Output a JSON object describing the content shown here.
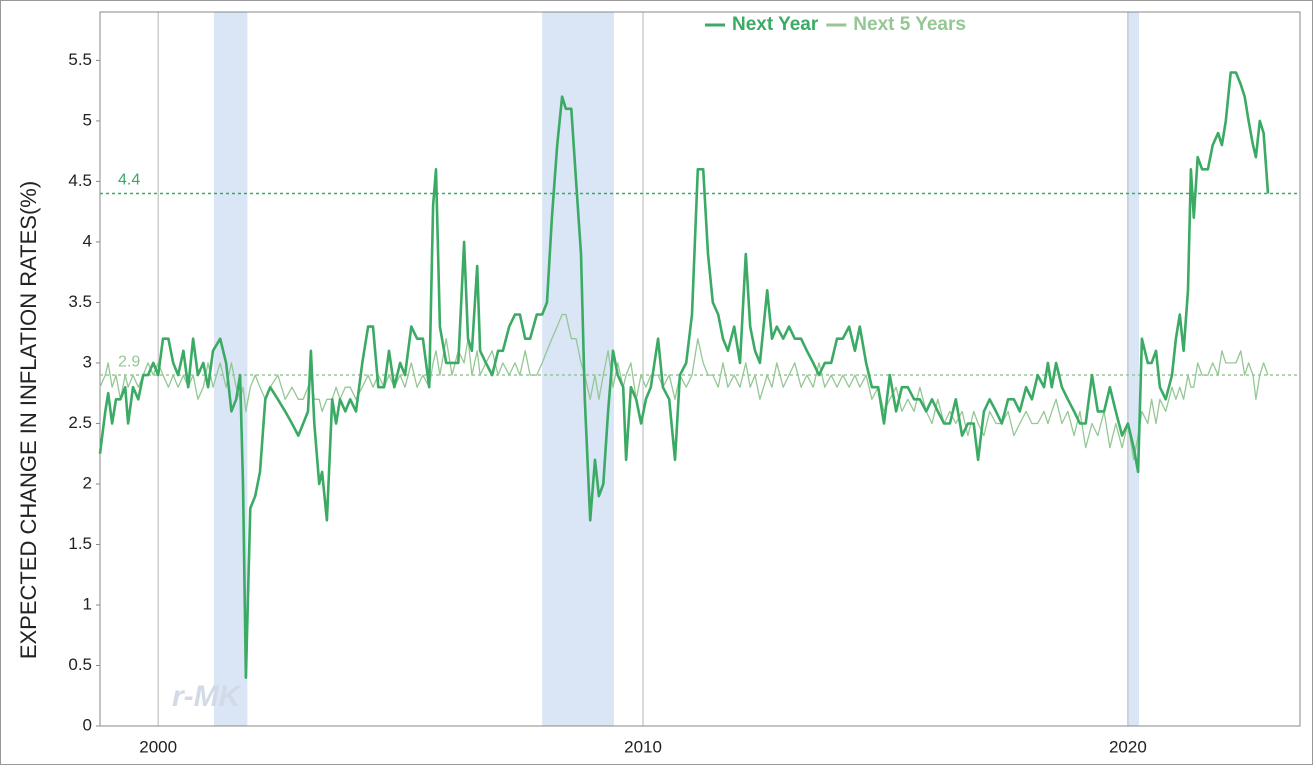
{
  "chart_data": {
    "type": "line",
    "y_label": "EXPECTED CHANGE IN INFLATION RATES(%)",
    "legend": "top",
    "watermark": "r-MK",
    "xlim": [
      1998.8,
      2023.55
    ],
    "xticks": [
      2000,
      2010,
      2020
    ],
    "xgrid": true,
    "ylim": [
      0,
      5.9
    ],
    "yticks": [
      0,
      0.5,
      1,
      1.5,
      2,
      2.5,
      3,
      3.5,
      4,
      4.5,
      5,
      5.5
    ],
    "shaded_ranges": [
      [
        2001.15,
        2001.84
      ],
      [
        2007.92,
        2009.4
      ],
      [
        2020.0,
        2020.23
      ]
    ],
    "shade_color": "#dae6f6",
    "reference_lines": [
      {
        "value": 4.4,
        "color": "#3aaa64"
      },
      {
        "value": 2.9,
        "color": "#95c795"
      }
    ],
    "x": [
      1998.8,
      1998.91,
      1998.97,
      1999.05,
      1999.13,
      1999.22,
      1999.32,
      1999.38,
      1999.48,
      1999.59,
      1999.69,
      1999.79,
      1999.9,
      2000.0,
      2000.1,
      2000.21,
      2000.31,
      2000.41,
      2000.52,
      2000.62,
      2000.72,
      2000.82,
      2000.93,
      2001.03,
      2001.13,
      2001.28,
      2001.4,
      2001.51,
      2001.61,
      2001.69,
      2001.75,
      2001.81,
      2001.9,
      2002.0,
      2002.1,
      2002.21,
      2002.31,
      2002.47,
      2002.62,
      2002.76,
      2002.89,
      2002.99,
      2003.09,
      2003.15,
      2003.22,
      2003.32,
      2003.38,
      2003.48,
      2003.59,
      2003.67,
      2003.75,
      2003.86,
      2003.96,
      2004.08,
      2004.21,
      2004.33,
      2004.43,
      2004.54,
      2004.66,
      2004.76,
      2004.87,
      2004.99,
      2005.09,
      2005.22,
      2005.34,
      2005.46,
      2005.59,
      2005.67,
      2005.73,
      2005.81,
      2005.94,
      2006.06,
      2006.19,
      2006.31,
      2006.39,
      2006.47,
      2006.58,
      2006.64,
      2006.76,
      2006.89,
      2007.01,
      2007.11,
      2007.24,
      2007.36,
      2007.46,
      2007.57,
      2007.67,
      2007.81,
      2007.92,
      2008.02,
      2008.12,
      2008.23,
      2008.33,
      2008.41,
      2008.52,
      2008.62,
      2008.72,
      2008.8,
      2008.91,
      2009.01,
      2009.09,
      2009.18,
      2009.28,
      2009.38,
      2009.48,
      2009.59,
      2009.65,
      2009.75,
      2009.86,
      2009.96,
      2010.06,
      2010.16,
      2010.31,
      2010.41,
      2010.54,
      2010.66,
      2010.76,
      2010.89,
      2011.01,
      2011.13,
      2011.24,
      2011.34,
      2011.44,
      2011.55,
      2011.65,
      2011.75,
      2011.88,
      2012.0,
      2012.12,
      2012.21,
      2012.31,
      2012.41,
      2012.56,
      2012.66,
      2012.76,
      2012.89,
      2013.01,
      2013.13,
      2013.26,
      2013.38,
      2013.51,
      2013.63,
      2013.75,
      2013.88,
      2014.0,
      2014.12,
      2014.25,
      2014.37,
      2014.47,
      2014.6,
      2014.72,
      2014.85,
      2014.97,
      2015.09,
      2015.22,
      2015.34,
      2015.46,
      2015.59,
      2015.71,
      2015.84,
      2015.96,
      2016.08,
      2016.21,
      2016.33,
      2016.45,
      2016.58,
      2016.7,
      2016.82,
      2016.91,
      2017.03,
      2017.15,
      2017.28,
      2017.4,
      2017.53,
      2017.65,
      2017.77,
      2017.9,
      2018.02,
      2018.14,
      2018.27,
      2018.35,
      2018.43,
      2018.52,
      2018.64,
      2018.76,
      2018.89,
      2019.01,
      2019.13,
      2019.26,
      2019.38,
      2019.51,
      2019.63,
      2019.75,
      2019.88,
      2020.0,
      2020.12,
      2020.21,
      2020.29,
      2020.41,
      2020.49,
      2020.58,
      2020.66,
      2020.78,
      2020.91,
      2020.99,
      2021.07,
      2021.15,
      2021.24,
      2021.3,
      2021.36,
      2021.44,
      2021.53,
      2021.65,
      2021.75,
      2021.86,
      2021.94,
      2022.02,
      2022.12,
      2022.23,
      2022.33,
      2022.41,
      2022.49,
      2022.58,
      2022.64,
      2022.72,
      2022.8,
      2022.89
    ],
    "series": [
      {
        "name": "Next Year",
        "color": "#3aaa64",
        "width": 2.6,
        "values": [
          2.25,
          2.6,
          2.75,
          2.5,
          2.7,
          2.7,
          2.8,
          2.5,
          2.8,
          2.7,
          2.9,
          2.9,
          3.0,
          2.9,
          3.2,
          3.2,
          3.0,
          2.9,
          3.1,
          2.8,
          3.2,
          2.9,
          3.0,
          2.8,
          3.1,
          3.2,
          3.0,
          2.6,
          2.7,
          2.9,
          2.0,
          0.4,
          1.8,
          1.9,
          2.1,
          2.7,
          2.8,
          2.7,
          2.6,
          2.5,
          2.4,
          2.5,
          2.6,
          3.1,
          2.5,
          2.0,
          2.1,
          1.7,
          2.7,
          2.5,
          2.7,
          2.6,
          2.7,
          2.6,
          3.0,
          3.3,
          3.3,
          2.8,
          2.8,
          3.1,
          2.8,
          3.0,
          2.9,
          3.3,
          3.2,
          3.2,
          2.8,
          4.3,
          4.6,
          3.3,
          3.0,
          3.0,
          3.0,
          4.0,
          3.2,
          3.1,
          3.8,
          3.1,
          3.0,
          2.9,
          3.1,
          3.1,
          3.3,
          3.4,
          3.4,
          3.2,
          3.2,
          3.4,
          3.4,
          3.5,
          4.2,
          4.8,
          5.2,
          5.1,
          5.1,
          4.5,
          3.9,
          2.7,
          1.7,
          2.2,
          1.9,
          2.0,
          2.6,
          3.1,
          2.9,
          2.8,
          2.2,
          2.8,
          2.7,
          2.5,
          2.7,
          2.8,
          3.2,
          2.8,
          2.7,
          2.2,
          2.9,
          3.0,
          3.4,
          4.6,
          4.6,
          3.9,
          3.5,
          3.4,
          3.2,
          3.1,
          3.3,
          3.0,
          3.9,
          3.3,
          3.1,
          3.0,
          3.6,
          3.2,
          3.3,
          3.2,
          3.3,
          3.2,
          3.2,
          3.1,
          3.0,
          2.9,
          3.0,
          3.0,
          3.2,
          3.2,
          3.3,
          3.1,
          3.3,
          3.0,
          2.8,
          2.8,
          2.5,
          2.9,
          2.6,
          2.8,
          2.8,
          2.7,
          2.7,
          2.6,
          2.7,
          2.6,
          2.5,
          2.5,
          2.7,
          2.4,
          2.5,
          2.5,
          2.2,
          2.6,
          2.7,
          2.6,
          2.5,
          2.7,
          2.7,
          2.6,
          2.8,
          2.7,
          2.9,
          2.8,
          3.0,
          2.8,
          3.0,
          2.8,
          2.7,
          2.6,
          2.5,
          2.5,
          2.9,
          2.6,
          2.6,
          2.8,
          2.6,
          2.4,
          2.5,
          2.3,
          2.1,
          3.2,
          3.0,
          3.0,
          3.1,
          2.8,
          2.7,
          2.9,
          3.2,
          3.4,
          3.1,
          3.6,
          4.6,
          4.2,
          4.7,
          4.6,
          4.6,
          4.8,
          4.9,
          4.8,
          5.0,
          5.4,
          5.4,
          5.3,
          5.2,
          5.0,
          4.8,
          4.7,
          5.0,
          4.9,
          4.4
        ]
      },
      {
        "name": "Next 5 Years",
        "color": "#95c795",
        "width": 1.3,
        "values": [
          2.8,
          2.9,
          3.0,
          2.8,
          2.9,
          2.7,
          2.9,
          2.8,
          2.9,
          2.8,
          2.9,
          3.0,
          2.9,
          3.0,
          2.9,
          2.8,
          2.9,
          2.8,
          2.9,
          2.8,
          2.9,
          2.7,
          2.8,
          3.0,
          2.8,
          3.0,
          2.8,
          3.0,
          2.8,
          2.7,
          2.8,
          2.6,
          2.8,
          2.9,
          2.8,
          2.7,
          2.8,
          2.9,
          2.7,
          2.8,
          2.7,
          2.7,
          2.8,
          2.9,
          2.7,
          2.7,
          2.6,
          2.7,
          2.7,
          2.8,
          2.7,
          2.8,
          2.8,
          2.7,
          2.8,
          2.9,
          2.8,
          2.9,
          2.8,
          2.9,
          2.8,
          2.9,
          2.8,
          3.0,
          2.8,
          2.9,
          2.8,
          3.0,
          3.1,
          2.9,
          3.2,
          2.9,
          3.1,
          3.0,
          3.2,
          2.9,
          3.1,
          2.9,
          3.0,
          3.1,
          2.9,
          3.0,
          2.9,
          3.0,
          2.9,
          3.1,
          2.9,
          2.9,
          3.0,
          3.1,
          3.2,
          3.3,
          3.4,
          3.4,
          3.2,
          3.2,
          3.0,
          2.9,
          2.7,
          2.9,
          2.7,
          2.9,
          3.1,
          2.8,
          3.0,
          2.8,
          2.9,
          3.0,
          2.7,
          2.9,
          2.8,
          2.9,
          2.9,
          2.8,
          2.9,
          2.7,
          2.9,
          2.8,
          2.9,
          3.2,
          3.0,
          2.9,
          2.9,
          2.8,
          3.0,
          2.8,
          2.9,
          2.8,
          3.0,
          2.8,
          2.9,
          2.7,
          2.9,
          2.8,
          3.0,
          2.8,
          2.9,
          3.0,
          2.8,
          2.9,
          2.8,
          3.0,
          2.8,
          2.9,
          2.8,
          2.9,
          2.8,
          2.9,
          2.8,
          2.9,
          2.7,
          2.8,
          2.6,
          2.7,
          2.8,
          2.6,
          2.7,
          2.6,
          2.8,
          2.6,
          2.5,
          2.7,
          2.5,
          2.6,
          2.5,
          2.6,
          2.4,
          2.6,
          2.5,
          2.4,
          2.6,
          2.5,
          2.5,
          2.6,
          2.4,
          2.5,
          2.6,
          2.5,
          2.5,
          2.6,
          2.5,
          2.6,
          2.7,
          2.5,
          2.6,
          2.4,
          2.6,
          2.3,
          2.5,
          2.4,
          2.6,
          2.3,
          2.5,
          2.3,
          2.5,
          2.2,
          2.4,
          2.6,
          2.5,
          2.7,
          2.5,
          2.7,
          2.6,
          2.8,
          2.7,
          2.8,
          2.7,
          2.9,
          2.8,
          2.8,
          3.0,
          2.9,
          2.9,
          3.0,
          2.9,
          3.1,
          3.0,
          3.0,
          3.0,
          3.1,
          2.9,
          3.0,
          2.9,
          2.7,
          2.9,
          3.0,
          2.9
        ]
      }
    ]
  }
}
